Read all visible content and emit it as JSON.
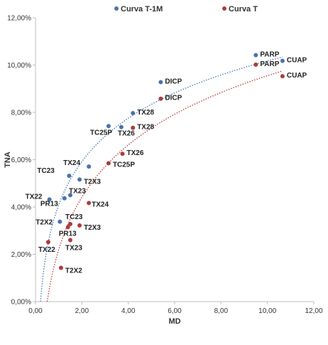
{
  "chart_data": {
    "type": "scatter",
    "xlabel": "MD",
    "ylabel": "TNA",
    "xlim": [
      0,
      12
    ],
    "ylim": [
      0,
      0.12
    ],
    "x_ticks": [
      "0,00",
      "2,00",
      "4,00",
      "6,00",
      "8,00",
      "10,00",
      "12,00"
    ],
    "y_ticks": [
      "0,00%",
      "2,00%",
      "4,00%",
      "6,00%",
      "8,00%",
      "10,00%",
      "12,00%"
    ],
    "legend_position": "top",
    "grid": false,
    "trendlines": "logarithmic, dotted",
    "series": [
      {
        "name": "Curva T-1M",
        "color": "#4a72b0",
        "points": [
          {
            "label": "PARP",
            "x": 9.5,
            "y": 0.1042
          },
          {
            "label": "CUAP",
            "x": 10.65,
            "y": 0.1018
          },
          {
            "label": "DICP",
            "x": 5.4,
            "y": 0.0928
          },
          {
            "label": "TX28",
            "x": 4.2,
            "y": 0.0797
          },
          {
            "label": "TC25P",
            "x": 3.15,
            "y": 0.0742
          },
          {
            "label": "TX26",
            "x": 3.7,
            "y": 0.0738
          },
          {
            "label": "TX24",
            "x": 2.3,
            "y": 0.0571
          },
          {
            "label": "TC23",
            "x": 1.45,
            "y": 0.0532
          },
          {
            "label": "T2X3",
            "x": 1.9,
            "y": 0.0516
          },
          {
            "label": "TX23",
            "x": 1.5,
            "y": 0.045
          },
          {
            "label": "TX22",
            "x": 0.6,
            "y": 0.0432
          },
          {
            "label": "PR13",
            "x": 1.25,
            "y": 0.0437
          },
          {
            "label": "T2X2",
            "x": 1.05,
            "y": 0.0338
          }
        ]
      },
      {
        "name": "Curva T",
        "color": "#b03a3a",
        "points": [
          {
            "label": "PARP",
            "x": 9.5,
            "y": 0.1002
          },
          {
            "label": "CUAP",
            "x": 10.65,
            "y": 0.0953
          },
          {
            "label": "DICP",
            "x": 5.4,
            "y": 0.0858
          },
          {
            "label": "TX28",
            "x": 4.2,
            "y": 0.0735
          },
          {
            "label": "TX26",
            "x": 3.75,
            "y": 0.0625
          },
          {
            "label": "TC25P",
            "x": 3.15,
            "y": 0.0585
          },
          {
            "label": "TX24",
            "x": 2.3,
            "y": 0.0417
          },
          {
            "label": "TC23",
            "x": 1.5,
            "y": 0.0328
          },
          {
            "label": "T2X3",
            "x": 1.9,
            "y": 0.0322
          },
          {
            "label": "PR13",
            "x": 1.4,
            "y": 0.0315
          },
          {
            "label": "TX23",
            "x": 1.5,
            "y": 0.026
          },
          {
            "label": "TX22",
            "x": 0.55,
            "y": 0.0252
          },
          {
            "label": "T2X2",
            "x": 1.1,
            "y": 0.0143
          }
        ]
      }
    ]
  }
}
